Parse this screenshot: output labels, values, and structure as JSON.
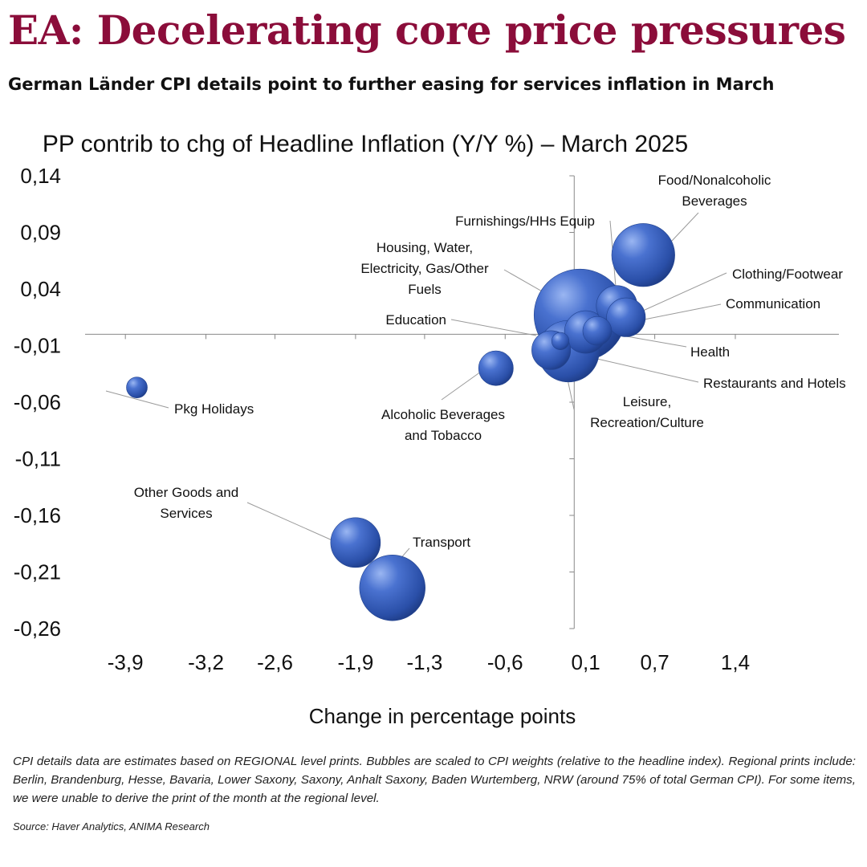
{
  "header": {
    "title": "EA: Decelerating core price pressures",
    "subtitle": "German Länder CPI details point to further easing for services inflation in March"
  },
  "chart_data": {
    "type": "bubble",
    "title": "PP contrib to chg of Headline Inflation (Y/Y %) – March 2025",
    "xlabel": "Change in percentage points",
    "ylabel": "",
    "xlim": [
      -4.25,
      2.3
    ],
    "ylim": [
      -0.26,
      0.14
    ],
    "x_ticks": [
      "-3,9",
      "-3,2",
      "-2,6",
      "-1,9",
      "-1,3",
      "-0,6",
      "0,1",
      "0,7",
      "1,4"
    ],
    "x_tick_values": [
      -3.9,
      -3.2,
      -2.6,
      -1.9,
      -1.3,
      -0.6,
      0.1,
      0.7,
      1.4
    ],
    "y_ticks": [
      "0,14",
      "0,09",
      "0,04",
      "-0,01",
      "-0,06",
      "-0,11",
      "-0,16",
      "-0,21",
      "-0,26"
    ],
    "y_tick_values": [
      0.14,
      0.09,
      0.04,
      -0.01,
      -0.06,
      -0.11,
      -0.16,
      -0.21,
      -0.26
    ],
    "bubble_color": "#3a64c4",
    "series": [
      {
        "name": "Housing, Water, Electricity, Gas/Other Fuels",
        "label_lines": [
          "Housing, Water,",
          "Electricity, Gas/Other",
          "Fuels"
        ],
        "x": 0.05,
        "y": 0.017,
        "weight": 25.2
      },
      {
        "name": "Food/Nonalcoholic Beverages",
        "label_lines": [
          "Food/Nonalcoholic",
          "Beverages"
        ],
        "x": 0.6,
        "y": 0.07,
        "weight": 11.9
      },
      {
        "name": "Furnishings/HHs Equip",
        "label_lines": [
          "Furnishings/HHs Equip"
        ],
        "x": 0.37,
        "y": 0.025,
        "weight": 5.0
      },
      {
        "name": "Clothing/Footwear",
        "label_lines": [
          "Clothing/Footwear"
        ],
        "x": 0.45,
        "y": 0.015,
        "weight": 4.5
      },
      {
        "name": "Communication",
        "label_lines": [
          "Communication"
        ],
        "x": 0.2,
        "y": 0.003,
        "weight": 2.5
      },
      {
        "name": "Health",
        "label_lines": [
          "Health"
        ],
        "x": 0.1,
        "y": 0.002,
        "weight": 5.4
      },
      {
        "name": "Education",
        "label_lines": [
          "Education"
        ],
        "x": -0.12,
        "y": -0.006,
        "weight": 0.9
      },
      {
        "name": "Restaurants and Hotels",
        "label_lines": [
          "Restaurants and Hotels"
        ],
        "x": -0.2,
        "y": -0.014,
        "weight": 4.5
      },
      {
        "name": "Leisure, Recreation/Culture",
        "label_lines": [
          "Leisure,",
          "Recreation/Culture"
        ],
        "x": -0.05,
        "y": -0.015,
        "weight": 11.3
      },
      {
        "name": "Alcoholic Beverages and Tobacco",
        "label_lines": [
          "Alcoholic Beverages",
          "and Tobacco"
        ],
        "x": -0.68,
        "y": -0.03,
        "weight": 3.6
      },
      {
        "name": "Pkg Holidays",
        "label_lines": [
          "Pkg Holidays"
        ],
        "x": -3.8,
        "y": -0.047,
        "weight": 1.3
      },
      {
        "name": "Other Goods and Services",
        "label_lines": [
          "Other Goods and",
          "Services"
        ],
        "x": -1.9,
        "y": -0.184,
        "weight": 7.4
      },
      {
        "name": "Transport",
        "label_lines": [
          "Transport"
        ],
        "x": -1.58,
        "y": -0.224,
        "weight": 12.9
      }
    ]
  },
  "footnote": "CPI details data are estimates based on REGIONAL level prints. Bubbles are scaled to CPI weights (relative to the headline index). Regional prints include: Berlin, Brandenburg, Hesse, Bavaria, Lower Saxony, Saxony, Anhalt Saxony, Baden Wurtemberg, NRW (around 75% of total German CPI). For some items, we were unable to derive the print of the month at the regional level.",
  "source": "Source: Haver Analytics, ANIMA Research"
}
